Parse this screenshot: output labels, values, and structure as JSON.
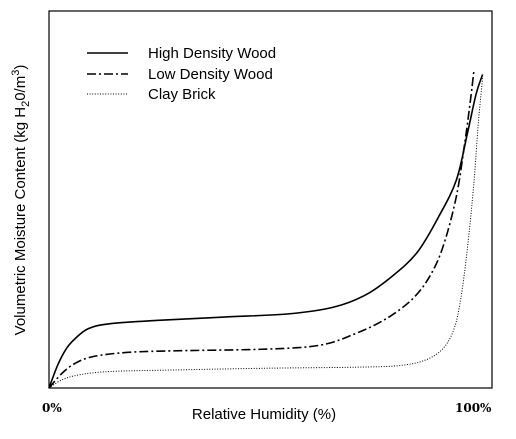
{
  "chart_data": {
    "type": "line",
    "title": "",
    "xlabel": "Relative Humidity (%)",
    "ylabel": "Volumetric Moisture Content (kg H",
    "ylabel_sub": "2",
    "ylabel_rest": "0/m",
    "ylabel_sup": "3",
    "ylabel_end": ")",
    "x_tick_labels": [
      "0%",
      "100%"
    ],
    "xlim": [
      0,
      100
    ],
    "ylim": [
      0,
      100
    ],
    "grid": false,
    "legend_position": "top-left",
    "series": [
      {
        "name": "High Density Wood",
        "style": "solid",
        "points": [
          [
            0,
            0
          ],
          [
            2,
            7
          ],
          [
            4,
            12
          ],
          [
            6,
            15
          ],
          [
            9,
            18
          ],
          [
            14,
            19.5
          ],
          [
            25,
            20.5
          ],
          [
            40,
            21.5
          ],
          [
            55,
            22.5
          ],
          [
            65,
            24.5
          ],
          [
            72,
            28
          ],
          [
            78,
            33.5
          ],
          [
            84,
            41
          ],
          [
            89,
            52
          ],
          [
            93,
            63
          ],
          [
            95.5,
            77
          ],
          [
            97.5,
            89
          ],
          [
            99,
            95
          ]
        ]
      },
      {
        "name": "Low Density Wood",
        "style": "dashdot",
        "points": [
          [
            0,
            0
          ],
          [
            3,
            4.5
          ],
          [
            6,
            7.5
          ],
          [
            10,
            9.5
          ],
          [
            18,
            10.8
          ],
          [
            30,
            11.3
          ],
          [
            50,
            11.8
          ],
          [
            62,
            13
          ],
          [
            70,
            16.5
          ],
          [
            77,
            21
          ],
          [
            83,
            27
          ],
          [
            87,
            34
          ],
          [
            90,
            43
          ],
          [
            93,
            58
          ],
          [
            95,
            75
          ],
          [
            96.2,
            87
          ],
          [
            97,
            96
          ]
        ]
      },
      {
        "name": "Clay Brick",
        "style": "dotted",
        "points": [
          [
            0,
            0
          ],
          [
            3,
            2.5
          ],
          [
            7,
            4
          ],
          [
            14,
            5
          ],
          [
            30,
            5.5
          ],
          [
            50,
            6
          ],
          [
            70,
            6.3
          ],
          [
            80,
            6.8
          ],
          [
            86,
            8.5
          ],
          [
            90,
            12
          ],
          [
            92.5,
            18
          ],
          [
            94,
            27
          ],
          [
            95.5,
            42
          ],
          [
            97,
            62
          ],
          [
            98,
            80
          ],
          [
            99,
            94
          ]
        ]
      }
    ]
  }
}
